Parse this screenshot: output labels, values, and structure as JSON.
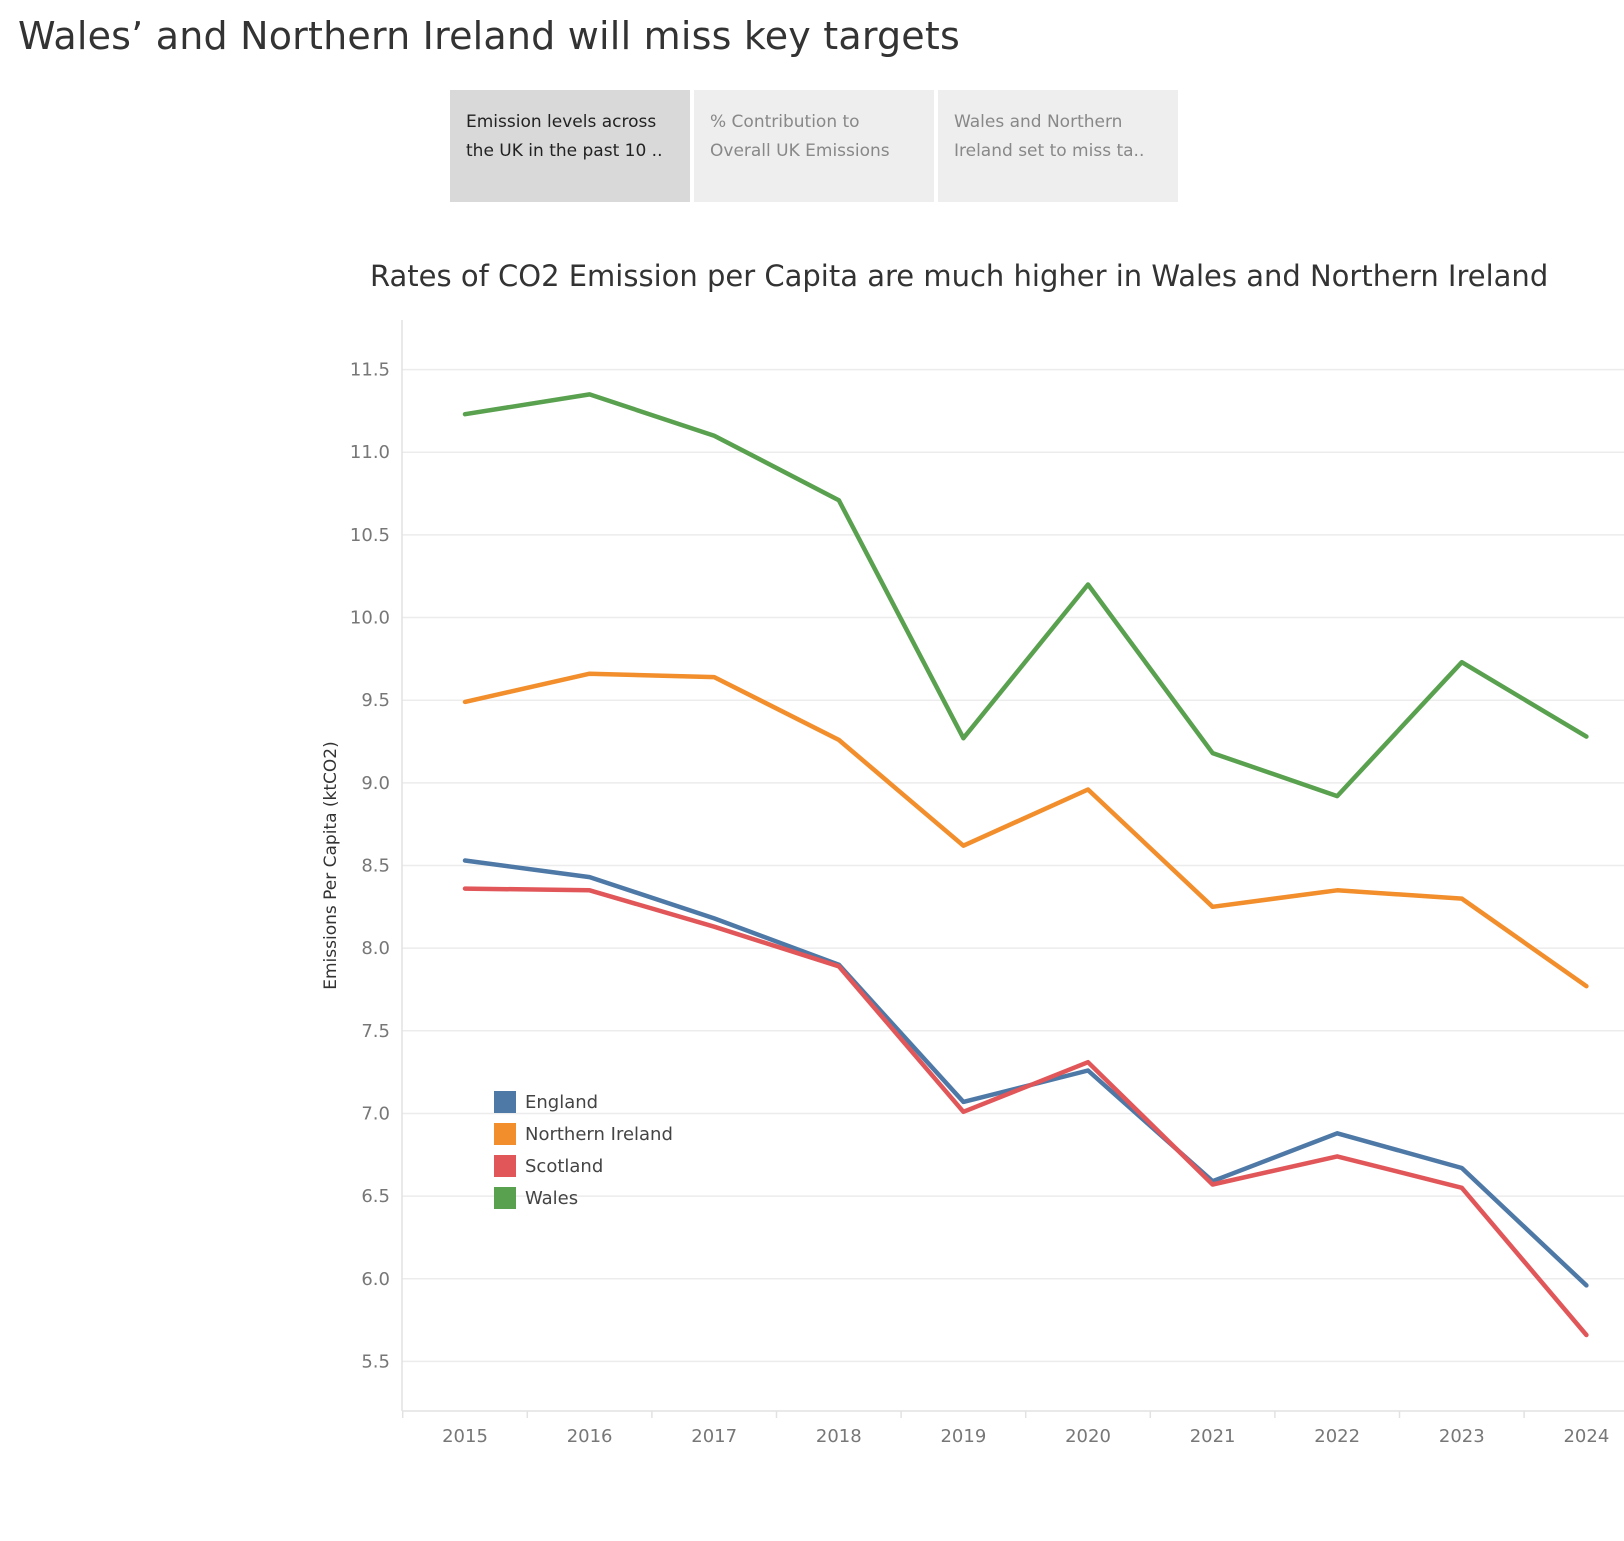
{
  "story": {
    "title": "Wales’ and Northern Ireland will miss key targets",
    "tabs": [
      {
        "line1": "Emission levels across",
        "line2": "the UK in the past 10 ..",
        "active": true
      },
      {
        "line1": "% Contribution to",
        "line2": "Overall UK Emissions",
        "active": false
      },
      {
        "line1": "Wales and Northern",
        "line2": "Ireland set to miss ta..",
        "active": false
      }
    ]
  },
  "chart_data": {
    "type": "line",
    "title": "Rates of CO2 Emission per Capita are much higher in Wales and Northern Ireland",
    "xlabel": "",
    "ylabel": "Emissions Per Capita (ktCO2)",
    "x": [
      "2015",
      "2016",
      "2017",
      "2018",
      "2019",
      "2020",
      "2021",
      "2022",
      "2023",
      "2024"
    ],
    "ylim": [
      5.2,
      11.8
    ],
    "yticks": [
      "5.5",
      "6.0",
      "6.5",
      "7.0",
      "7.5",
      "8.0",
      "8.5",
      "9.0",
      "9.5",
      "10.0",
      "10.5",
      "11.0",
      "11.5"
    ],
    "grid": true,
    "legend_position": "bottom-left",
    "series": [
      {
        "name": "England",
        "color": "#4e79a7",
        "values": [
          8.53,
          8.43,
          8.18,
          7.9,
          7.07,
          7.26,
          6.59,
          6.88,
          6.67,
          5.96
        ]
      },
      {
        "name": "Northern Ireland",
        "color": "#f28e2b",
        "values": [
          9.49,
          9.66,
          9.64,
          9.26,
          8.62,
          8.96,
          8.25,
          8.35,
          8.3,
          7.77
        ]
      },
      {
        "name": "Scotland",
        "color": "#e15759",
        "values": [
          8.36,
          8.35,
          8.13,
          7.89,
          7.01,
          7.31,
          6.57,
          6.74,
          6.55,
          5.66
        ]
      },
      {
        "name": "Wales",
        "color": "#59a14f",
        "values": [
          11.23,
          11.35,
          11.1,
          10.71,
          9.27,
          10.2,
          9.18,
          8.92,
          9.73,
          9.28
        ]
      }
    ]
  }
}
